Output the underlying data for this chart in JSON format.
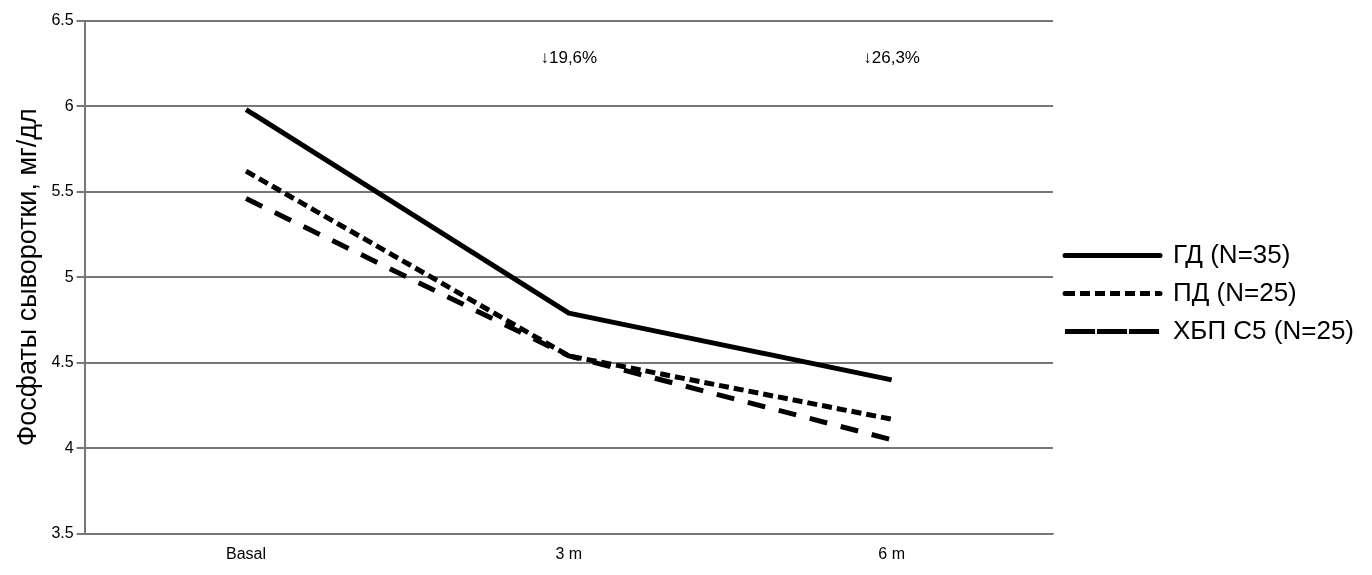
{
  "chart_data": {
    "type": "line",
    "ylabel": "Фосфаты сыворотки, мг/дл",
    "categories": [
      "Basal",
      "3 m",
      "6 m"
    ],
    "series": [
      {
        "name": "ГД (N=35)",
        "color": "#000000",
        "values": [
          5.98,
          4.79,
          4.4
        ],
        "line_style": "solid"
      },
      {
        "name": "ПД (N=25)",
        "color": "#000000",
        "values": [
          5.62,
          4.54,
          4.17
        ],
        "line_style": "dashed"
      },
      {
        "name": "ХБП С5 (N=25)",
        "color": "#000000",
        "values": [
          5.46,
          4.54,
          4.05
        ],
        "line_style": "dashed"
      }
    ],
    "ylim": [
      3.5,
      6.5
    ],
    "yticks": [
      3.5,
      4,
      4.5,
      5,
      5.5,
      6,
      6.5
    ],
    "grid": "y",
    "legend": "right",
    "marker": "none",
    "annotations": [
      "↓19,6%",
      "↓26,3%"
    ]
  }
}
